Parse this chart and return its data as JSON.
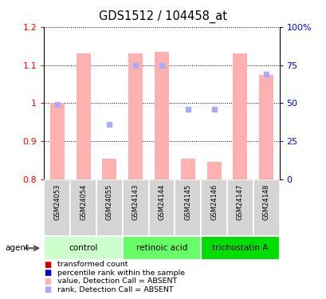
{
  "title": "GDS1512 / 104458_at",
  "samples": [
    "GSM24053",
    "GSM24054",
    "GSM24055",
    "GSM24143",
    "GSM24144",
    "GSM24145",
    "GSM24146",
    "GSM24147",
    "GSM24148"
  ],
  "bar_values": [
    1.0,
    1.13,
    0.855,
    1.13,
    1.135,
    0.855,
    0.845,
    1.13,
    1.075
  ],
  "rank_values_pct": [
    49,
    null,
    36,
    75,
    75,
    46,
    46,
    null,
    69
  ],
  "bar_bottom": 0.8,
  "ylim_left": [
    0.8,
    1.2
  ],
  "ylim_right": [
    0,
    100
  ],
  "yticks_left": [
    0.8,
    0.9,
    1.0,
    1.1,
    1.2
  ],
  "ytick_labels_left": [
    "0.8",
    "0.9",
    "1",
    "1.1",
    "1.2"
  ],
  "yticks_right": [
    0,
    25,
    50,
    75,
    100
  ],
  "ytick_labels_right": [
    "0",
    "25",
    "50",
    "75",
    "100%"
  ],
  "groups": [
    {
      "label": "control",
      "indices": [
        0,
        1,
        2
      ],
      "color": "#ccffcc"
    },
    {
      "label": "retinoic acid",
      "indices": [
        3,
        4,
        5
      ],
      "color": "#66ff66"
    },
    {
      "label": "trichostatin A",
      "indices": [
        6,
        7,
        8
      ],
      "color": "#00dd00"
    }
  ],
  "bar_color_absent": "#ffb0b0",
  "rank_color_absent": "#aaaaff",
  "legend_items": [
    {
      "color": "#cc0000",
      "label": "transformed count"
    },
    {
      "color": "#0000cc",
      "label": "percentile rank within the sample"
    },
    {
      "color": "#ffb0b0",
      "label": "value, Detection Call = ABSENT"
    },
    {
      "color": "#aaaaff",
      "label": "rank, Detection Call = ABSENT"
    }
  ],
  "agent_label": "agent"
}
